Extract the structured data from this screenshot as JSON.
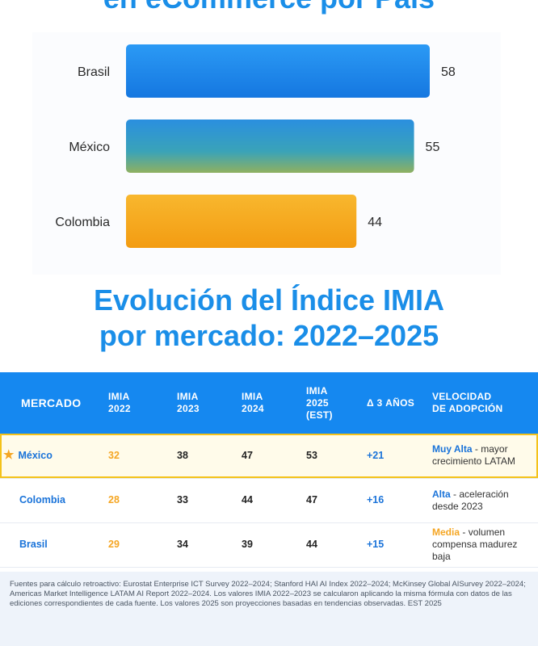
{
  "top_title": "en eCommerce por País",
  "section_title_line1": "Evolución del Índice IMIA",
  "section_title_line2": "por mercado: 2022–2025",
  "colors": {
    "accent": "#1a8ee8",
    "header_bg": "#1588f0",
    "orange": "#f5a623",
    "footnote_bg": "#eef3fa"
  },
  "chart_data": {
    "type": "bar",
    "orientation": "horizontal",
    "title": "en eCommerce por País",
    "categories": [
      "Brasil",
      "México",
      "Colombia"
    ],
    "values": [
      58,
      55,
      44
    ],
    "xlim": [
      0,
      65
    ],
    "colors": [
      "#1f8ff0",
      "#2e9bd8",
      "#f5a623"
    ]
  },
  "table": {
    "headers": {
      "mercado": "MERCADO",
      "imia2022": [
        "IMIA",
        "2022"
      ],
      "imia2023": [
        "IMIA",
        "2023"
      ],
      "imia2024": [
        "IMIA",
        "2024"
      ],
      "imia2025": [
        "IMIA",
        "2025",
        "(EST)"
      ],
      "delta": "Δ 3 AÑOS",
      "velocidad": [
        "VELOCIDAD",
        "DE ADOPCIÓN"
      ]
    },
    "rows": [
      {
        "market": "México",
        "v2022": "32",
        "v2023": "38",
        "v2024": "47",
        "v2025": "53",
        "delta": "+21",
        "speed_label": "Muy Alta",
        "speed_desc": "mayor crecimiento LATAM",
        "highlight": true
      },
      {
        "market": "Colombia",
        "v2022": "28",
        "v2023": "33",
        "v2024": "44",
        "v2025": "47",
        "delta": "+16",
        "speed_label": "Alta",
        "speed_desc": "aceleración desde 2023",
        "highlight": false
      },
      {
        "market": "Brasil",
        "v2022": "29",
        "v2023": "34",
        "v2024": "39",
        "v2025": "44",
        "delta": "+15",
        "speed_label": "Media",
        "speed_desc": "volumen compensa madurez baja",
        "highlight": false
      }
    ]
  },
  "star_icon": "star-icon",
  "footnote": "Fuentes para cálculo retroactivo: Eurostat Enterprise ICT Survey 2022–2024; Stanford HAI AI Index 2022–2024; McKinsey Global AISurvey 2022–2024; Americas Market Intelligence LATAM AI Report 2022–2024. Los valores IMIA 2022–2023 se calcularon aplicando la misma fórmula con datos de las ediciones correspondientes de cada fuente. Los valores 2025 son proyecciones basadas en tendencias observadas. EST 2025"
}
